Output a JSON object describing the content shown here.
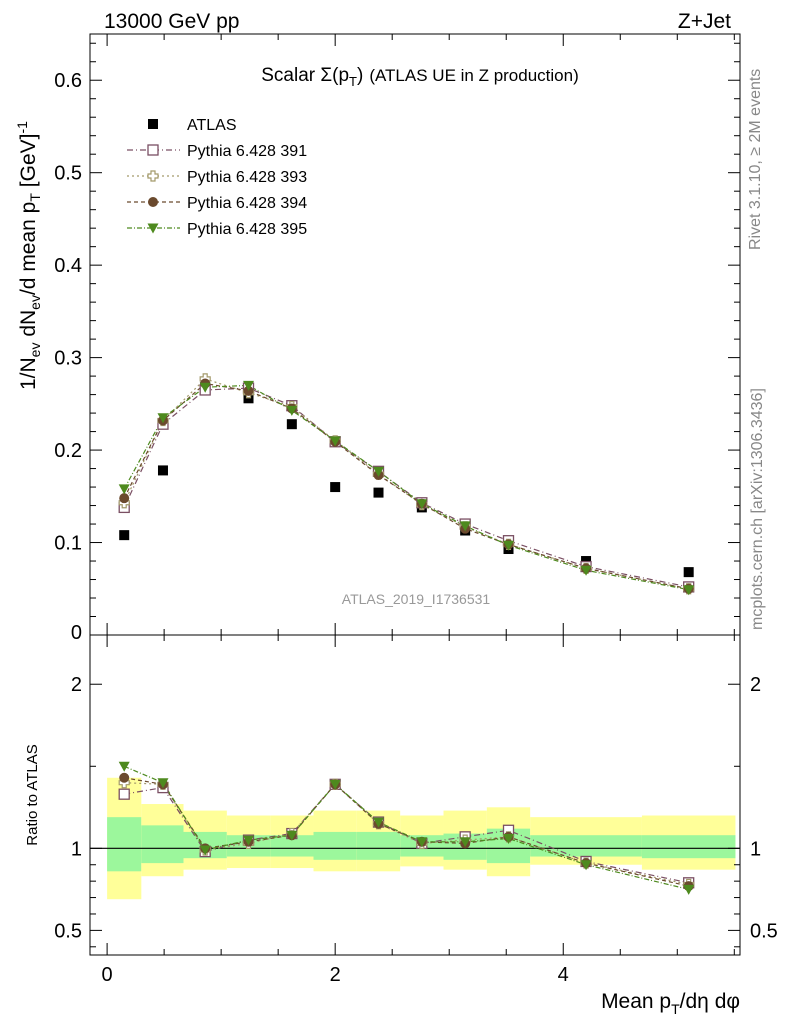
{
  "header": {
    "energy": "13000 GeV pp",
    "process": "Z+Jet"
  },
  "side_labels": {
    "rivet": "Rivet 3.1.10, ≥ 2M events",
    "mcplots": "mcplots.cern.ch [arXiv:1306.3436]"
  },
  "analysis_id": "ATLAS_2019_I1736531",
  "colors": {
    "atlas": "#000000",
    "p391": "#7a4f63",
    "p393": "#a39a6b",
    "p394": "#6b4a2e",
    "p395": "#4e8a1e",
    "band_inner": "#9cf79c",
    "band_outer": "#ffff99"
  },
  "chart_data": [
    {
      "type": "scatter",
      "title_main": "Scalar Σ(p",
      "title_sub": "T",
      "title_close": ")",
      "title_extra": "(ATLAS UE in Z production)",
      "ylabel": "1/N",
      "ylabel_sub1": "ev",
      "ylabel_mid": " dN",
      "ylabel_sub2": "ev",
      "ylabel_mid2": "/d mean p",
      "ylabel_sub3": "T",
      "ylabel_unit": " [GeV]",
      "ylabel_sup": "-1",
      "xlim": [
        -0.15,
        5.55
      ],
      "ylim": [
        0,
        0.65
      ],
      "yticks": [
        {
          "v": 0.1,
          "label": "0.1"
        },
        {
          "v": 0.2,
          "label": "0.2"
        },
        {
          "v": 0.3,
          "label": "0.3"
        },
        {
          "v": 0.4,
          "label": "0.4"
        },
        {
          "v": 0.5,
          "label": "0.5"
        },
        {
          "v": 0.6,
          "label": "0.6"
        }
      ],
      "y_zero_label": "0",
      "legend": [
        {
          "key": "atlas",
          "label": "ATLAS"
        },
        {
          "key": "p391",
          "label": "Pythia 6.428 391"
        },
        {
          "key": "p393",
          "label": "Pythia 6.428 393"
        },
        {
          "key": "p394",
          "label": "Pythia 6.428 394"
        },
        {
          "key": "p395",
          "label": "Pythia 6.428 395"
        }
      ],
      "x": [
        0.15,
        0.49,
        0.86,
        1.24,
        1.62,
        2.0,
        2.38,
        2.76,
        3.14,
        3.52,
        4.2,
        5.1
      ],
      "series": [
        {
          "key": "atlas",
          "values": [
            0.108,
            0.178,
            0.268,
            0.256,
            0.228,
            0.16,
            0.154,
            0.138,
            0.113,
            0.093,
            0.08,
            0.068
          ]
        },
        {
          "key": "p391",
          "values": [
            0.138,
            0.228,
            0.265,
            0.267,
            0.248,
            0.209,
            0.177,
            0.143,
            0.12,
            0.102,
            0.074,
            0.052
          ]
        },
        {
          "key": "p393",
          "values": [
            0.143,
            0.232,
            0.277,
            0.262,
            0.247,
            0.21,
            0.174,
            0.141,
            0.117,
            0.098,
            0.072,
            0.05
          ]
        },
        {
          "key": "p394",
          "values": [
            0.148,
            0.232,
            0.272,
            0.264,
            0.245,
            0.209,
            0.173,
            0.142,
            0.115,
            0.098,
            0.072,
            0.05
          ]
        },
        {
          "key": "p395",
          "values": [
            0.158,
            0.235,
            0.268,
            0.27,
            0.243,
            0.21,
            0.177,
            0.142,
            0.118,
            0.097,
            0.07,
            0.049
          ]
        }
      ]
    },
    {
      "type": "scatter",
      "ylabel": "Ratio to ATLAS",
      "xlabel_main": "Mean p",
      "xlabel_sub": "T",
      "xlabel_rest": "/dη dφ",
      "xlim": [
        -0.15,
        5.55
      ],
      "ylim": [
        0.35,
        2.3
      ],
      "yticks": [
        {
          "v": 0.5,
          "label": "0.5"
        },
        {
          "v": 1,
          "label": "1"
        },
        {
          "v": 2,
          "label": "2"
        }
      ],
      "xticks": [
        {
          "v": 0,
          "label": "0"
        },
        {
          "v": 2,
          "label": "2"
        },
        {
          "v": 4,
          "label": "4"
        }
      ],
      "bands": [
        {
          "x0": 0.0,
          "x1": 0.3,
          "outer": [
            0.69,
            1.43
          ],
          "inner": [
            0.86,
            1.19
          ]
        },
        {
          "x0": 0.3,
          "x1": 0.67,
          "outer": [
            0.83,
            1.27
          ],
          "inner": [
            0.91,
            1.14
          ]
        },
        {
          "x0": 0.67,
          "x1": 1.05,
          "outer": [
            0.87,
            1.23
          ],
          "inner": [
            0.94,
            1.1
          ]
        },
        {
          "x0": 1.05,
          "x1": 1.43,
          "outer": [
            0.88,
            1.2
          ],
          "inner": [
            0.95,
            1.08
          ]
        },
        {
          "x0": 1.43,
          "x1": 1.81,
          "outer": [
            0.88,
            1.2
          ],
          "inner": [
            0.95,
            1.08
          ]
        },
        {
          "x0": 1.81,
          "x1": 2.19,
          "outer": [
            0.86,
            1.23
          ],
          "inner": [
            0.93,
            1.1
          ]
        },
        {
          "x0": 2.19,
          "x1": 2.57,
          "outer": [
            0.86,
            1.23
          ],
          "inner": [
            0.93,
            1.1
          ]
        },
        {
          "x0": 2.57,
          "x1": 2.95,
          "outer": [
            0.89,
            1.2
          ],
          "inner": [
            0.95,
            1.08
          ]
        },
        {
          "x0": 2.95,
          "x1": 3.33,
          "outer": [
            0.87,
            1.23
          ],
          "inner": [
            0.93,
            1.09
          ]
        },
        {
          "x0": 3.33,
          "x1": 3.71,
          "outer": [
            0.83,
            1.25
          ],
          "inner": [
            0.91,
            1.12
          ]
        },
        {
          "x0": 3.71,
          "x1": 4.69,
          "outer": [
            0.9,
            1.19
          ],
          "inner": [
            0.95,
            1.08
          ]
        },
        {
          "x0": 4.69,
          "x1": 5.51,
          "outer": [
            0.87,
            1.2
          ],
          "inner": [
            0.94,
            1.08
          ]
        }
      ],
      "x": [
        0.15,
        0.49,
        0.86,
        1.24,
        1.62,
        2.0,
        2.38,
        2.76,
        3.14,
        3.52,
        4.2,
        5.1
      ],
      "series": [
        {
          "key": "p391",
          "values": [
            1.33,
            1.37,
            0.98,
            1.05,
            1.09,
            1.39,
            1.16,
            1.03,
            1.07,
            1.11,
            0.92,
            0.79
          ]
        },
        {
          "key": "p393",
          "values": [
            1.4,
            1.39,
            0.99,
            1.03,
            1.09,
            1.39,
            1.15,
            1.03,
            1.05,
            1.07,
            0.91,
            0.78
          ]
        },
        {
          "key": "p394",
          "values": [
            1.43,
            1.39,
            1.0,
            1.04,
            1.08,
            1.39,
            1.15,
            1.04,
            1.03,
            1.07,
            0.91,
            0.77
          ]
        },
        {
          "key": "p395",
          "values": [
            1.5,
            1.4,
            0.99,
            1.05,
            1.08,
            1.39,
            1.16,
            1.04,
            1.04,
            1.06,
            0.9,
            0.75
          ]
        }
      ]
    }
  ]
}
